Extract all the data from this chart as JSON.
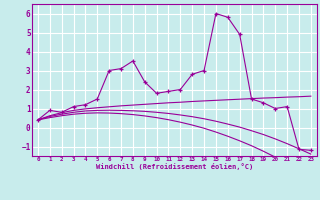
{
  "bg_color": "#c8ecec",
  "grid_color": "#ffffff",
  "line_color": "#990099",
  "xlabel": "Windchill (Refroidissement éolien,°C)",
  "ylim": [
    -1.5,
    6.5
  ],
  "xlim": [
    -0.5,
    23.5
  ],
  "xticks": [
    0,
    1,
    2,
    3,
    4,
    5,
    6,
    7,
    8,
    9,
    10,
    11,
    12,
    13,
    14,
    15,
    16,
    17,
    18,
    19,
    20,
    21,
    22,
    23
  ],
  "yticks": [
    -1,
    0,
    1,
    2,
    3,
    4,
    5,
    6
  ],
  "main_line": [
    0.4,
    0.9,
    0.8,
    1.1,
    1.2,
    1.5,
    3.0,
    3.1,
    3.5,
    2.4,
    1.8,
    1.9,
    2.0,
    2.8,
    3.0,
    6.0,
    5.8,
    4.9,
    1.5,
    1.3,
    1.0,
    1.1,
    -1.15,
    -1.2
  ],
  "trend_line1": [
    0.4,
    0.62,
    0.78,
    0.9,
    0.98,
    1.04,
    1.09,
    1.14,
    1.18,
    1.22,
    1.26,
    1.3,
    1.33,
    1.37,
    1.4,
    1.43,
    1.46,
    1.49,
    1.52,
    1.55,
    1.57,
    1.6,
    1.62,
    1.65
  ],
  "trend_line2": [
    0.4,
    0.58,
    0.7,
    0.8,
    0.87,
    0.9,
    0.91,
    0.9,
    0.88,
    0.85,
    0.8,
    0.74,
    0.66,
    0.57,
    0.46,
    0.33,
    0.18,
    0.02,
    -0.17,
    -0.37,
    -0.6,
    -0.85,
    -1.12,
    -1.4
  ],
  "trend_line3": [
    0.4,
    0.52,
    0.62,
    0.7,
    0.75,
    0.77,
    0.76,
    0.73,
    0.68,
    0.61,
    0.52,
    0.41,
    0.28,
    0.13,
    -0.04,
    -0.24,
    -0.46,
    -0.7,
    -0.96,
    -1.25,
    -1.56,
    -1.88,
    -2.22,
    -2.57
  ]
}
